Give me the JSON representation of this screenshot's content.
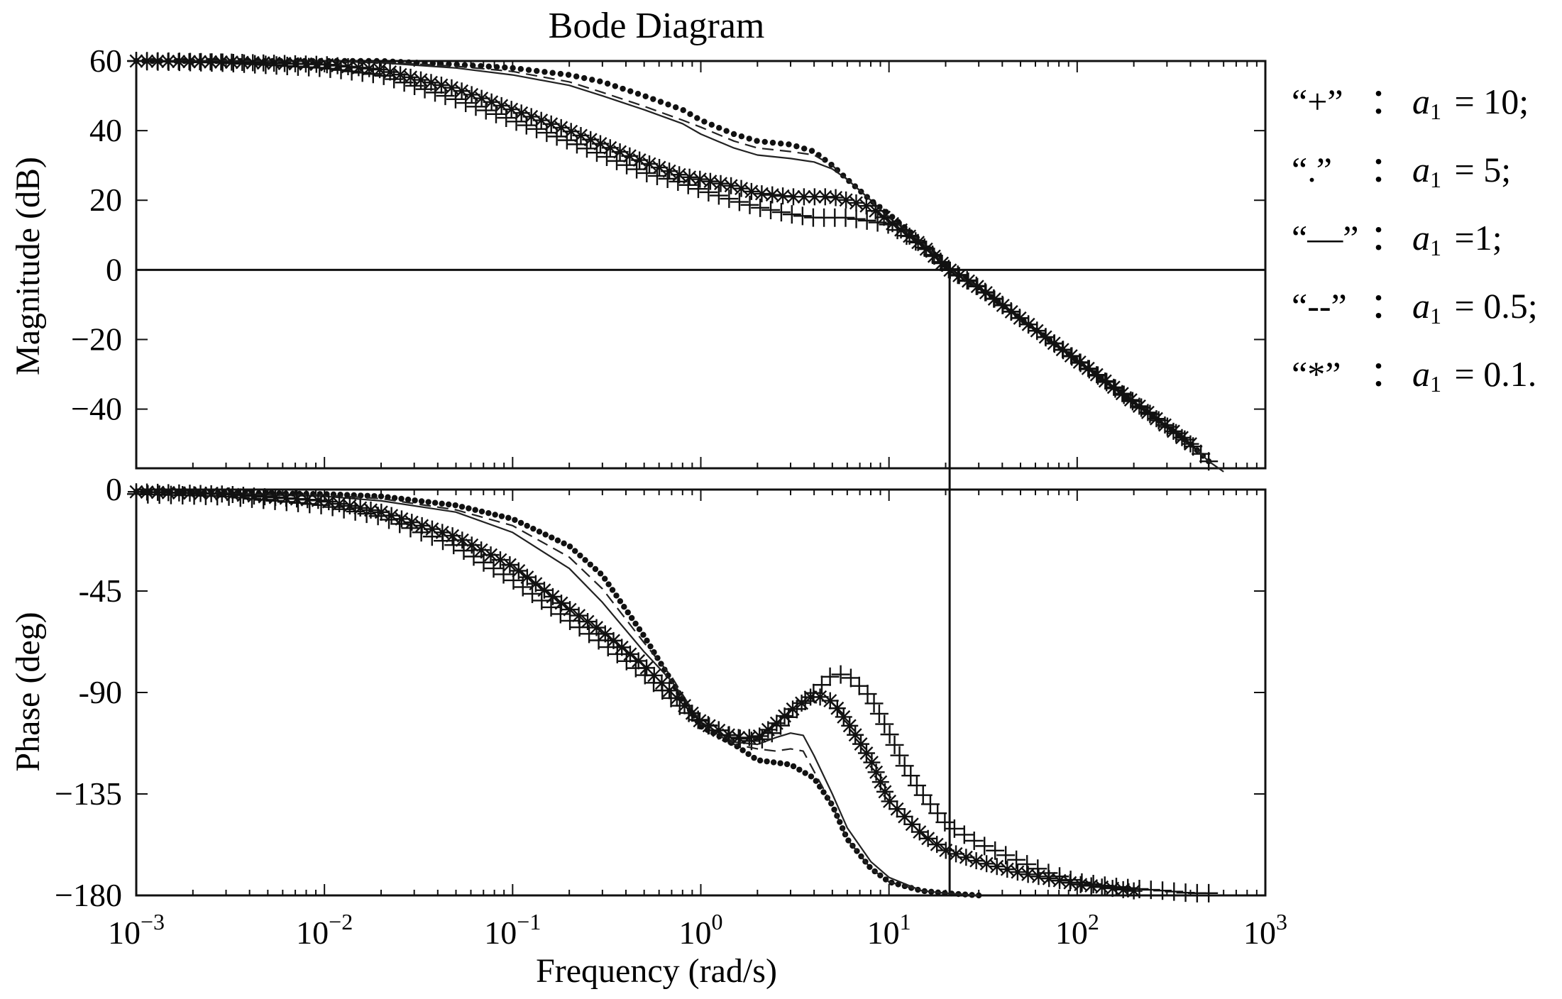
{
  "chart_data": {
    "type": "line",
    "title": "Bode Diagram",
    "xlabel": "Frequency (rad/s)",
    "xscale": "log",
    "xlim": [
      0.001,
      1000
    ],
    "x_ticks": [
      {
        "base": "10",
        "exp": "−3",
        "value": 0.001
      },
      {
        "base": "10",
        "exp": "−2",
        "value": 0.01
      },
      {
        "base": "10",
        "exp": "−1",
        "value": 0.1
      },
      {
        "base": "10",
        "exp": "0",
        "value": 1
      },
      {
        "base": "10",
        "exp": "1",
        "value": 10
      },
      {
        "base": "10",
        "exp": "2",
        "value": 100
      },
      {
        "base": "10",
        "exp": "3",
        "value": 1000
      }
    ],
    "crossover_frequency": 21,
    "panels": [
      {
        "name": "magnitude",
        "ylabel": "Magnitude (dB)",
        "ylim": [
          -57,
          60
        ],
        "y_ticks": [
          {
            "label": "60",
            "value": 60
          },
          {
            "label": "40",
            "value": 40
          },
          {
            "label": "20",
            "value": 20
          },
          {
            "label": "0",
            "value": 0
          },
          {
            "label": "−20",
            "value": -20
          },
          {
            "label": "−40",
            "value": -40
          }
        ],
        "reference_line": 0
      },
      {
        "name": "phase",
        "ylabel": "Phase (deg)",
        "ylim": [
          -180,
          0
        ],
        "y_ticks": [
          {
            "label": "0",
            "value": 0
          },
          {
            "label": "-45",
            "value": -45
          },
          {
            "label": "-90",
            "value": -90
          },
          {
            "label": "−135",
            "value": -135
          },
          {
            "label": "−180",
            "value": -180
          }
        ]
      }
    ],
    "series": [
      {
        "name": "a1 = 10",
        "marker": "+",
        "legend_symbol": "“+”",
        "legend_value": "= 10;",
        "magnitude": [
          [
            0.001,
            60
          ],
          [
            0.003,
            59.5
          ],
          [
            0.01,
            58
          ],
          [
            0.02,
            56
          ],
          [
            0.05,
            49
          ],
          [
            0.1,
            43
          ],
          [
            0.2,
            37
          ],
          [
            0.3,
            33
          ],
          [
            0.5,
            28
          ],
          [
            0.8,
            25
          ],
          [
            1,
            23
          ],
          [
            1.5,
            20
          ],
          [
            2,
            18
          ],
          [
            3,
            16
          ],
          [
            4,
            15
          ],
          [
            5,
            15
          ],
          [
            6,
            15
          ],
          [
            8,
            14
          ],
          [
            10,
            13
          ],
          [
            15,
            7
          ],
          [
            21,
            0
          ],
          [
            30,
            -5
          ],
          [
            50,
            -14
          ],
          [
            100,
            -26
          ],
          [
            200,
            -38
          ],
          [
            300,
            -45
          ],
          [
            400,
            -50
          ],
          [
            500,
            -55
          ]
        ],
        "phase": [
          [
            0.001,
            -2
          ],
          [
            0.003,
            -3
          ],
          [
            0.01,
            -7
          ],
          [
            0.02,
            -12
          ],
          [
            0.05,
            -25
          ],
          [
            0.1,
            -40
          ],
          [
            0.2,
            -58
          ],
          [
            0.3,
            -68
          ],
          [
            0.5,
            -82
          ],
          [
            0.8,
            -97
          ],
          [
            1,
            -103
          ],
          [
            1.5,
            -110
          ],
          [
            2,
            -112
          ],
          [
            2.5,
            -107
          ],
          [
            3,
            -100
          ],
          [
            4,
            -90
          ],
          [
            5,
            -82
          ],
          [
            6,
            -82
          ],
          [
            8,
            -92
          ],
          [
            10,
            -108
          ],
          [
            12,
            -122
          ],
          [
            15,
            -135
          ],
          [
            20,
            -148
          ],
          [
            30,
            -157
          ],
          [
            50,
            -165
          ],
          [
            70,
            -170
          ],
          [
            100,
            -174
          ],
          [
            150,
            -176
          ],
          [
            200,
            -177
          ],
          [
            300,
            -178
          ],
          [
            400,
            -179
          ],
          [
            500,
            -179
          ]
        ]
      },
      {
        "name": "a1 = 5",
        "marker": "dot",
        "legend_symbol": "“.”",
        "legend_value": "= 5;",
        "magnitude": [
          [
            0.001,
            60
          ],
          [
            0.01,
            60
          ],
          [
            0.02,
            60
          ],
          [
            0.05,
            59
          ],
          [
            0.1,
            58
          ],
          [
            0.2,
            56
          ],
          [
            0.3,
            54
          ],
          [
            0.5,
            50
          ],
          [
            0.8,
            46
          ],
          [
            1,
            43
          ],
          [
            1.5,
            39
          ],
          [
            2,
            37
          ],
          [
            3,
            36
          ],
          [
            4,
            34
          ],
          [
            5,
            30
          ],
          [
            6,
            26
          ],
          [
            8,
            20
          ],
          [
            10,
            16
          ],
          [
            15,
            8
          ],
          [
            21,
            0
          ],
          [
            30,
            -5
          ],
          [
            50,
            -14
          ],
          [
            100,
            -26
          ],
          [
            200,
            -38
          ],
          [
            300,
            -45
          ],
          [
            400,
            -50
          ],
          [
            500,
            -55
          ]
        ],
        "phase": [
          [
            0.001,
            -1
          ],
          [
            0.01,
            -2
          ],
          [
            0.02,
            -3
          ],
          [
            0.05,
            -7
          ],
          [
            0.1,
            -13
          ],
          [
            0.2,
            -25
          ],
          [
            0.3,
            -38
          ],
          [
            0.5,
            -65
          ],
          [
            0.7,
            -85
          ],
          [
            0.8,
            -93
          ],
          [
            1,
            -105
          ],
          [
            1.5,
            -113
          ],
          [
            2,
            -120
          ],
          [
            3,
            -122
          ],
          [
            4,
            -128
          ],
          [
            5,
            -140
          ],
          [
            6,
            -155
          ],
          [
            8,
            -168
          ],
          [
            10,
            -174
          ],
          [
            15,
            -178
          ],
          [
            20,
            -179
          ],
          [
            30,
            -180
          ]
        ]
      },
      {
        "name": "a1=1",
        "marker": "solid",
        "legend_symbol": "“—”",
        "legend_value": "=1;",
        "magnitude": [
          [
            0.001,
            60
          ],
          [
            0.01,
            60
          ],
          [
            0.02,
            59.5
          ],
          [
            0.05,
            58
          ],
          [
            0.1,
            56
          ],
          [
            0.2,
            53
          ],
          [
            0.3,
            50
          ],
          [
            0.5,
            46
          ],
          [
            0.8,
            42
          ],
          [
            1,
            39
          ],
          [
            1.5,
            35
          ],
          [
            2,
            33
          ],
          [
            3,
            32
          ],
          [
            4,
            31
          ],
          [
            5,
            29
          ],
          [
            6,
            26
          ],
          [
            8,
            20
          ],
          [
            10,
            15
          ],
          [
            15,
            8
          ],
          [
            21,
            0
          ],
          [
            30,
            -5
          ],
          [
            50,
            -14
          ],
          [
            100,
            -26
          ],
          [
            200,
            -38
          ],
          [
            300,
            -45
          ],
          [
            400,
            -50
          ],
          [
            500,
            -55
          ],
          [
            600,
            -58
          ]
        ],
        "phase": [
          [
            0.001,
            -1
          ],
          [
            0.01,
            -3
          ],
          [
            0.02,
            -5
          ],
          [
            0.05,
            -10
          ],
          [
            0.1,
            -19
          ],
          [
            0.2,
            -35
          ],
          [
            0.3,
            -50
          ],
          [
            0.5,
            -72
          ],
          [
            0.7,
            -85
          ],
          [
            1,
            -103
          ],
          [
            1.5,
            -112
          ],
          [
            2,
            -113
          ],
          [
            2.5,
            -110
          ],
          [
            3,
            -108
          ],
          [
            3.5,
            -109
          ],
          [
            4,
            -118
          ],
          [
            5,
            -135
          ],
          [
            6,
            -150
          ],
          [
            8,
            -165
          ],
          [
            10,
            -172
          ],
          [
            15,
            -178
          ],
          [
            20,
            -179
          ],
          [
            30,
            -180
          ]
        ]
      },
      {
        "name": "a1 = 0.5",
        "marker": "dashed",
        "legend_symbol": "“--”",
        "legend_value": "= 0.5;",
        "magnitude": [
          [
            0.001,
            60
          ],
          [
            0.01,
            60
          ],
          [
            0.02,
            59.7
          ],
          [
            0.05,
            58.5
          ],
          [
            0.1,
            57
          ],
          [
            0.2,
            54
          ],
          [
            0.3,
            51
          ],
          [
            0.5,
            47
          ],
          [
            0.8,
            43
          ],
          [
            1,
            41
          ],
          [
            1.5,
            37
          ],
          [
            2,
            35
          ],
          [
            3,
            34
          ],
          [
            4,
            33
          ],
          [
            5,
            30
          ],
          [
            6,
            26
          ],
          [
            8,
            20
          ],
          [
            10,
            15
          ],
          [
            15,
            8
          ],
          [
            21,
            0
          ],
          [
            30,
            -5
          ],
          [
            50,
            -14
          ],
          [
            100,
            -26
          ],
          [
            200,
            -38
          ],
          [
            300,
            -45
          ],
          [
            400,
            -50
          ],
          [
            500,
            -55
          ]
        ],
        "phase": [
          [
            0.001,
            -1
          ],
          [
            0.01,
            -2.5
          ],
          [
            0.02,
            -4
          ],
          [
            0.05,
            -9
          ],
          [
            0.1,
            -16
          ],
          [
            0.2,
            -30
          ],
          [
            0.3,
            -44
          ],
          [
            0.5,
            -68
          ],
          [
            0.7,
            -83
          ],
          [
            1,
            -104
          ],
          [
            1.5,
            -113
          ],
          [
            2,
            -115
          ],
          [
            2.5,
            -116
          ],
          [
            3,
            -115
          ],
          [
            3.5,
            -116
          ],
          [
            4,
            -125
          ],
          [
            5,
            -140
          ],
          [
            6,
            -155
          ],
          [
            8,
            -168
          ],
          [
            10,
            -174
          ],
          [
            15,
            -178
          ],
          [
            20,
            -179
          ],
          [
            30,
            -180
          ]
        ]
      },
      {
        "name": "a1 = 0.1",
        "marker": "*",
        "legend_symbol": "“*”",
        "legend_value": "= 0.1.",
        "magnitude": [
          [
            0.001,
            60
          ],
          [
            0.003,
            59.7
          ],
          [
            0.01,
            59
          ],
          [
            0.02,
            57.5
          ],
          [
            0.05,
            52
          ],
          [
            0.1,
            46
          ],
          [
            0.2,
            40
          ],
          [
            0.3,
            36
          ],
          [
            0.5,
            31
          ],
          [
            0.8,
            27
          ],
          [
            1,
            26
          ],
          [
            1.5,
            24
          ],
          [
            2,
            22
          ],
          [
            3,
            21
          ],
          [
            4,
            21
          ],
          [
            5,
            21
          ],
          [
            6,
            20
          ],
          [
            8,
            18
          ],
          [
            10,
            14
          ],
          [
            15,
            7
          ],
          [
            21,
            0
          ],
          [
            30,
            -5
          ],
          [
            50,
            -14
          ],
          [
            100,
            -26
          ],
          [
            200,
            -38
          ],
          [
            300,
            -45
          ],
          [
            400,
            -50
          ]
        ],
        "phase": [
          [
            0.001,
            -1
          ],
          [
            0.003,
            -2
          ],
          [
            0.01,
            -5
          ],
          [
            0.02,
            -10
          ],
          [
            0.05,
            -21
          ],
          [
            0.1,
            -34
          ],
          [
            0.2,
            -53
          ],
          [
            0.3,
            -63
          ],
          [
            0.5,
            -78
          ],
          [
            0.8,
            -95
          ],
          [
            1,
            -103
          ],
          [
            1.5,
            -110
          ],
          [
            2,
            -110
          ],
          [
            2.5,
            -104
          ],
          [
            3,
            -98
          ],
          [
            4,
            -91
          ],
          [
            5,
            -94
          ],
          [
            6,
            -103
          ],
          [
            8,
            -120
          ],
          [
            10,
            -138
          ],
          [
            15,
            -153
          ],
          [
            20,
            -160
          ],
          [
            30,
            -165
          ],
          [
            50,
            -170
          ],
          [
            100,
            -175
          ],
          [
            200,
            -178
          ]
        ]
      }
    ]
  },
  "legend": {
    "subscript_symbol": "a",
    "subscript_index": "1",
    "separator": "："
  }
}
